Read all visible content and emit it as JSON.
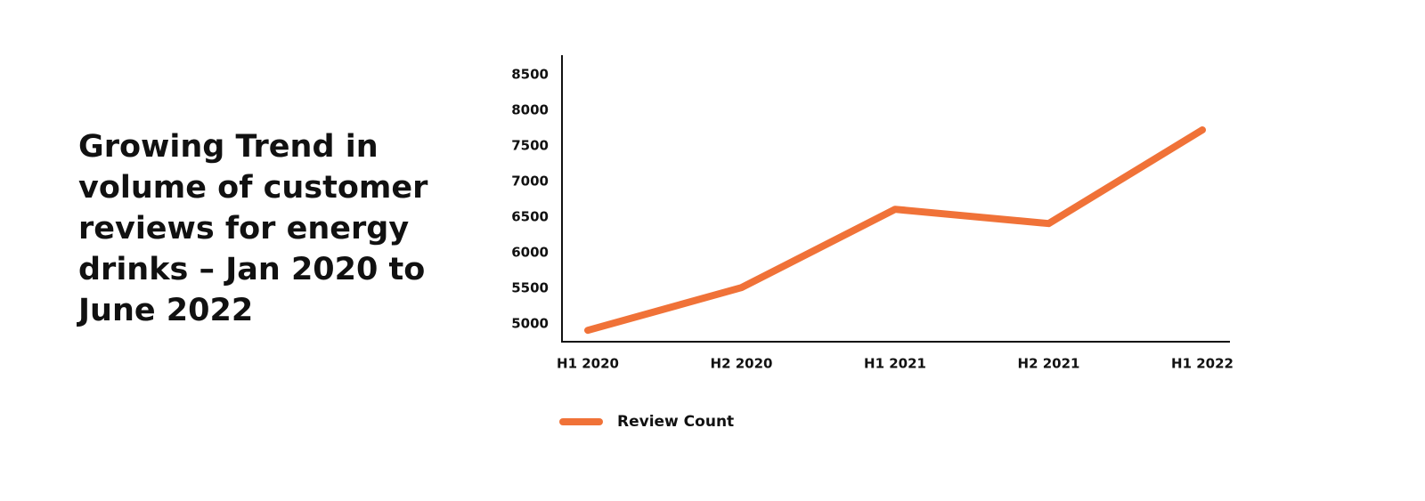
{
  "chart_data": {
    "type": "line",
    "title": "Growing Trend in volume of customer reviews for energy drinks – Jan 2020 to June 2022",
    "categories": [
      "H1 2020",
      "H2 2020",
      "H1 2021",
      "H2 2021",
      "H1 2022"
    ],
    "series": [
      {
        "name": "Review Count",
        "color": "#f07238",
        "values": [
          4910,
          5510,
          6610,
          6410,
          7725
        ]
      }
    ],
    "ylim": [
      4750,
      8775
    ],
    "yticks": [
      5000,
      5500,
      6000,
      6500,
      7000,
      7500,
      8000,
      8500
    ],
    "grid": false,
    "legend": "bottom"
  }
}
